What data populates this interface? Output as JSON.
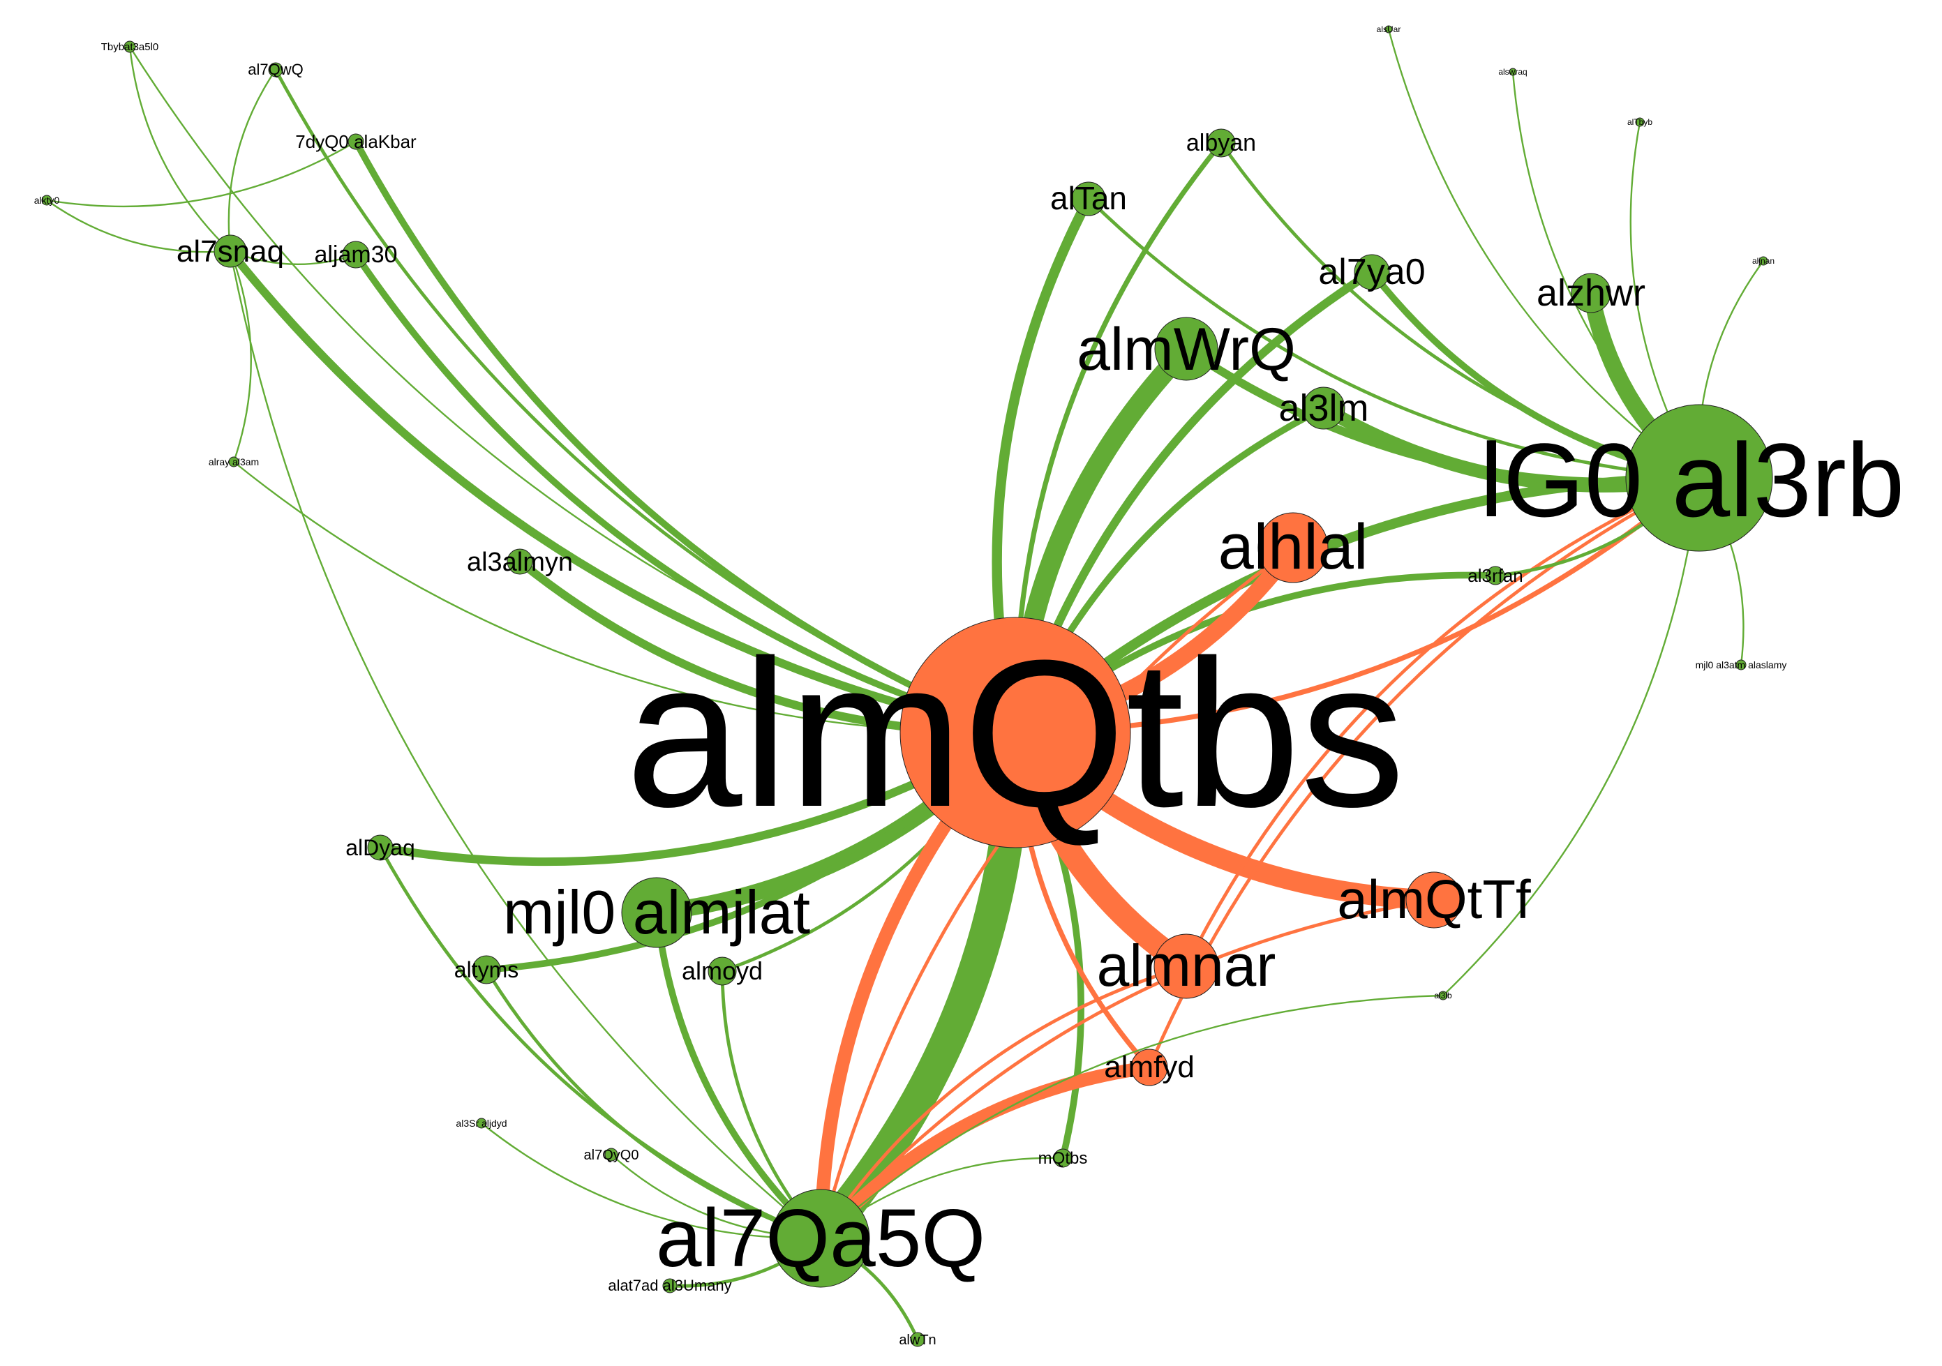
{
  "colors": {
    "green": "#62AC35",
    "orange": "#FF7340",
    "text": "#000000",
    "background": "#FFFFFF"
  },
  "nodes": [
    {
      "id": "almqtbs",
      "label": "almQtbs",
      "group": "orange",
      "weight": 100
    },
    {
      "id": "lg0",
      "label": "lG0 al3rb",
      "group": "green",
      "weight": 48
    },
    {
      "id": "al7qa5q",
      "label": "al7Qa5Q",
      "group": "green",
      "weight": 34
    },
    {
      "id": "almjlat",
      "label": "mjl0 almjlat",
      "group": "green",
      "weight": 26
    },
    {
      "id": "almwrq",
      "label": "almWrQ",
      "group": "green",
      "weight": 24
    },
    {
      "id": "alhlal",
      "label": "alhlal",
      "group": "orange",
      "weight": 26
    },
    {
      "id": "almnar",
      "label": "almnar",
      "group": "orange",
      "weight": 24
    },
    {
      "id": "almqttf",
      "label": "almQtTf",
      "group": "orange",
      "weight": 20
    },
    {
      "id": "alzhwr",
      "label": "alzhwr",
      "group": "green",
      "weight": 16
    },
    {
      "id": "al7ya0",
      "label": "al7ya0",
      "group": "green",
      "weight": 13
    },
    {
      "id": "al3lm",
      "label": "al3lm",
      "group": "green",
      "weight": 14
    },
    {
      "id": "altan",
      "label": "alTan",
      "group": "green",
      "weight": 12
    },
    {
      "id": "albyan",
      "label": "albyan",
      "group": "green",
      "weight": 10
    },
    {
      "id": "almfyd",
      "label": "almfyd",
      "group": "orange",
      "weight": 13
    },
    {
      "id": "al7snaq",
      "label": "al7snaq",
      "group": "green",
      "weight": 11
    },
    {
      "id": "aljam30",
      "label": "aljam30",
      "group": "green",
      "weight": 9
    },
    {
      "id": "al3almyn",
      "label": "al3almyn",
      "group": "green",
      "weight": 9
    },
    {
      "id": "aldyaq",
      "label": "alDyaq",
      "group": "green",
      "weight": 9
    },
    {
      "id": "altyms",
      "label": "altyms",
      "group": "green",
      "weight": 9
    },
    {
      "id": "almoyd",
      "label": "almoyd",
      "group": "green",
      "weight": 9
    },
    {
      "id": "al3rfan",
      "label": "al3rfan",
      "group": "green",
      "weight": 6
    },
    {
      "id": "mqtbs",
      "label": "mQtbs",
      "group": "green",
      "weight": 6
    },
    {
      "id": "akbar",
      "label": "7dyQ0 alaKbar",
      "group": "green",
      "weight": 6
    },
    {
      "id": "al7qwq",
      "label": "al7QwQ",
      "group": "green",
      "weight": 4
    },
    {
      "id": "tbybat",
      "label": "Tbybat3a5l0",
      "group": "green",
      "weight": 3
    },
    {
      "id": "alkty0",
      "label": "alkty0",
      "group": "green",
      "weight": 3
    },
    {
      "id": "alray",
      "label": "alray al3am",
      "group": "green",
      "weight": 3
    },
    {
      "id": "al3srjdyd",
      "label": "al3Sr aljdyd",
      "group": "green",
      "weight": 3
    },
    {
      "id": "al7qyq0",
      "label": "al7QyQ0",
      "group": "green",
      "weight": 4
    },
    {
      "id": "ittihad",
      "label": "alat7ad al3Umany",
      "group": "green",
      "weight": 4
    },
    {
      "id": "alwtn",
      "label": "alwTn",
      "group": "green",
      "weight": 4
    },
    {
      "id": "al3lb",
      "label": "al3lb",
      "group": "green",
      "weight": 2
    },
    {
      "id": "al3atm",
      "label": "mjl0 al3atm alaslamy",
      "group": "green",
      "weight": 3
    },
    {
      "id": "aljnan",
      "label": "aljnan",
      "group": "green",
      "weight": 2
    },
    {
      "id": "altbyb",
      "label": "alTbyb",
      "group": "green",
      "weight": 2
    },
    {
      "id": "alswraq",
      "label": "alswraq",
      "group": "green",
      "weight": 2
    },
    {
      "id": "alsuar",
      "label": "alsUar",
      "group": "green",
      "weight": 2
    }
  ],
  "edges": [
    {
      "source": "al7qa5q",
      "target": "almqtbs",
      "group": "green",
      "weight": 20
    },
    {
      "source": "almjlat",
      "target": "almqtbs",
      "group": "green",
      "weight": 10
    },
    {
      "source": "almwrq",
      "target": "almqtbs",
      "group": "green",
      "weight": 12
    },
    {
      "source": "lg0",
      "target": "almqtbs",
      "group": "green",
      "weight": 6
    },
    {
      "source": "altan",
      "target": "almqtbs",
      "group": "green",
      "weight": 6
    },
    {
      "source": "al3almyn",
      "target": "almqtbs",
      "group": "green",
      "weight": 5
    },
    {
      "source": "aldyaq",
      "target": "almqtbs",
      "group": "green",
      "weight": 5
    },
    {
      "source": "al7snaq",
      "target": "almqtbs",
      "group": "green",
      "weight": 5
    },
    {
      "source": "aljam30",
      "target": "almqtbs",
      "group": "green",
      "weight": 4
    },
    {
      "source": "akbar",
      "target": "almqtbs",
      "group": "green",
      "weight": 4
    },
    {
      "source": "al7ya0",
      "target": "almqtbs",
      "group": "green",
      "weight": 5
    },
    {
      "source": "al3lm",
      "target": "almqtbs",
      "group": "green",
      "weight": 4
    },
    {
      "source": "al3rfan",
      "target": "almqtbs",
      "group": "green",
      "weight": 4
    },
    {
      "source": "albyan",
      "target": "almqtbs",
      "group": "green",
      "weight": 3
    },
    {
      "source": "altyms",
      "target": "almqtbs",
      "group": "green",
      "weight": 4
    },
    {
      "source": "almoyd",
      "target": "almqtbs",
      "group": "green",
      "weight": 2
    },
    {
      "source": "al7qwq",
      "target": "almqtbs",
      "group": "green",
      "weight": 2
    },
    {
      "source": "tbybat",
      "target": "almqtbs",
      "group": "green",
      "weight": 1
    },
    {
      "source": "mqtbs",
      "target": "almqtbs",
      "group": "green",
      "weight": 4
    },
    {
      "source": "alray",
      "target": "almqtbs",
      "group": "green",
      "weight": 1
    },
    {
      "source": "almqtbs",
      "target": "almnar",
      "group": "orange",
      "weight": 14
    },
    {
      "source": "almqtbs",
      "target": "almqttf",
      "group": "orange",
      "weight": 12
    },
    {
      "source": "almqtbs",
      "target": "alhlal",
      "group": "orange",
      "weight": 10
    },
    {
      "source": "almqtbs",
      "target": "al7qa5q",
      "group": "orange",
      "weight": 8
    },
    {
      "source": "almqtbs",
      "target": "almfyd",
      "group": "orange",
      "weight": 3
    },
    {
      "source": "almqtbs",
      "target": "lg0",
      "group": "orange",
      "weight": 3
    },
    {
      "source": "alhlal",
      "target": "al7qa5q",
      "group": "orange",
      "weight": 2
    },
    {
      "source": "almnar",
      "target": "al7qa5q",
      "group": "orange",
      "weight": 2
    },
    {
      "source": "almfyd",
      "target": "al7qa5q",
      "group": "orange",
      "weight": 8
    },
    {
      "source": "almqttf",
      "target": "al7qa5q",
      "group": "orange",
      "weight": 2
    },
    {
      "source": "lg0",
      "target": "almnar",
      "group": "orange",
      "weight": 2
    },
    {
      "source": "lg0",
      "target": "almfyd",
      "group": "orange",
      "weight": 2
    },
    {
      "source": "alzhwr",
      "target": "lg0",
      "group": "green",
      "weight": 10
    },
    {
      "source": "al3lm",
      "target": "lg0",
      "group": "green",
      "weight": 8
    },
    {
      "source": "almwrq",
      "target": "lg0",
      "group": "green",
      "weight": 5
    },
    {
      "source": "al7ya0",
      "target": "lg0",
      "group": "green",
      "weight": 4
    },
    {
      "source": "albyan",
      "target": "lg0",
      "group": "green",
      "weight": 2
    },
    {
      "source": "altan",
      "target": "lg0",
      "group": "green",
      "weight": 2
    },
    {
      "source": "al3rfan",
      "target": "lg0",
      "group": "green",
      "weight": 2
    },
    {
      "source": "aljnan",
      "target": "lg0",
      "group": "green",
      "weight": 1
    },
    {
      "source": "altbyb",
      "target": "lg0",
      "group": "green",
      "weight": 1
    },
    {
      "source": "alswraq",
      "target": "lg0",
      "group": "green",
      "weight": 1
    },
    {
      "source": "alsuar",
      "target": "lg0",
      "group": "green",
      "weight": 1
    },
    {
      "source": "al3atm",
      "target": "lg0",
      "group": "green",
      "weight": 1
    },
    {
      "source": "al3lb",
      "target": "lg0",
      "group": "green",
      "weight": 1
    },
    {
      "source": "almjlat",
      "target": "al7qa5q",
      "group": "green",
      "weight": 4
    },
    {
      "source": "altyms",
      "target": "al7qa5q",
      "group": "green",
      "weight": 2
    },
    {
      "source": "aldyaq",
      "target": "al7qa5q",
      "group": "green",
      "weight": 2
    },
    {
      "source": "al3srjdyd",
      "target": "al7qa5q",
      "group": "green",
      "weight": 1
    },
    {
      "source": "al7qyq0",
      "target": "al7qa5q",
      "group": "green",
      "weight": 1
    },
    {
      "source": "ittihad",
      "target": "al7qa5q",
      "group": "green",
      "weight": 2
    },
    {
      "source": "alwtn",
      "target": "al7qa5q",
      "group": "green",
      "weight": 2
    },
    {
      "source": "almoyd",
      "target": "al7qa5q",
      "group": "green",
      "weight": 2
    },
    {
      "source": "mqtbs",
      "target": "al7qa5q",
      "group": "green",
      "weight": 1
    },
    {
      "source": "al3lb",
      "target": "al7qa5q",
      "group": "green",
      "weight": 1
    },
    {
      "source": "al7snaq",
      "target": "al7qa5q",
      "group": "green",
      "weight": 1
    },
    {
      "source": "alkty0",
      "target": "akbar",
      "group": "green",
      "weight": 1
    },
    {
      "source": "tbybat",
      "target": "al7snaq",
      "group": "green",
      "weight": 1
    },
    {
      "source": "al7qwq",
      "target": "al7snaq",
      "group": "green",
      "weight": 1
    },
    {
      "source": "alkty0",
      "target": "al7snaq",
      "group": "green",
      "weight": 1
    },
    {
      "source": "al7snaq",
      "target": "aljam30",
      "group": "green",
      "weight": 1
    },
    {
      "source": "alray",
      "target": "al7snaq",
      "group": "green",
      "weight": 1
    }
  ]
}
